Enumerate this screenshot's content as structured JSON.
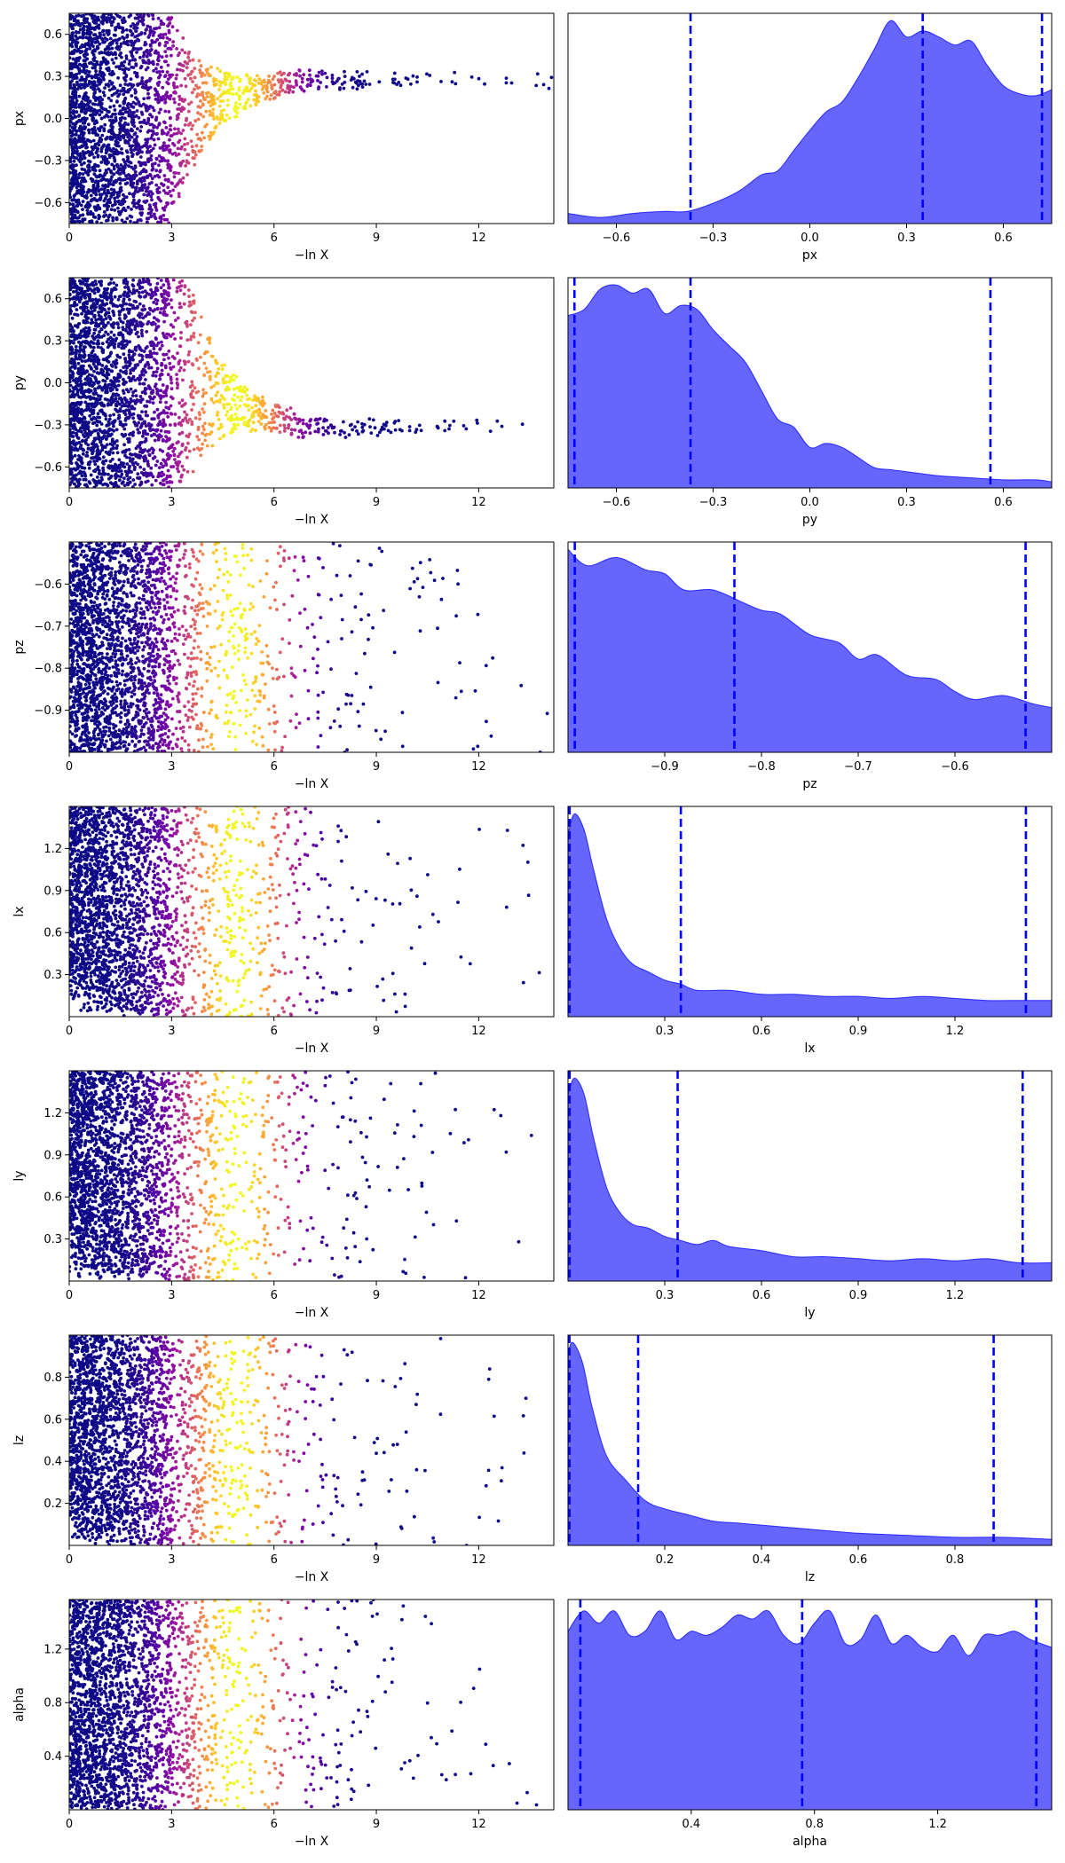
{
  "figure": {
    "colormap": "plasma",
    "kde_fill_color": "#0000ff",
    "kde_fill_opacity": 0.6,
    "quantile_line_color": "#0000ff"
  },
  "chart_data": [
    {
      "type": "scatter",
      "param": "px",
      "xlabel": "−ln X",
      "ylabel": "px",
      "xlim": [
        0,
        14.2
      ],
      "ylim": [
        -0.75,
        0.75
      ],
      "xticks": [
        0,
        3,
        6,
        9,
        12
      ],
      "xtick_labels": [
        "0",
        "3",
        "6",
        "9",
        "12"
      ],
      "yticks": [
        -0.6,
        -0.3,
        0.0,
        0.3,
        0.6
      ],
      "ytick_labels": [
        "−0.6",
        "−0.3",
        "0.0",
        "0.3",
        "0.6"
      ],
      "color_by": "-ln X",
      "weight_peak_x": 4.9,
      "contraction": {
        "start": 3.0,
        "end": 14.2,
        "target": 0.27,
        "min_halfwidth": 0.03
      }
    },
    {
      "type": "area",
      "param": "px",
      "xlabel": "px",
      "xlim": [
        -0.75,
        0.75
      ],
      "xticks": [
        -0.6,
        -0.3,
        0.0,
        0.3,
        0.6
      ],
      "xtick_labels": [
        "−0.6",
        "−0.3",
        "0.0",
        "0.3",
        "0.6"
      ],
      "x": [
        -0.75,
        -0.65,
        -0.55,
        -0.45,
        -0.38,
        -0.3,
        -0.22,
        -0.15,
        -0.1,
        -0.05,
        0.0,
        0.05,
        0.1,
        0.15,
        0.2,
        0.25,
        0.3,
        0.35,
        0.4,
        0.45,
        0.5,
        0.55,
        0.6,
        0.65,
        0.7,
        0.75
      ],
      "density": [
        0.05,
        0.03,
        0.05,
        0.06,
        0.06,
        0.1,
        0.16,
        0.24,
        0.26,
        0.36,
        0.46,
        0.55,
        0.6,
        0.72,
        0.86,
        1.0,
        0.92,
        0.95,
        0.92,
        0.88,
        0.9,
        0.78,
        0.68,
        0.64,
        0.63,
        0.66
      ],
      "quantiles": [
        -0.37,
        0.35,
        0.72
      ]
    },
    {
      "type": "scatter",
      "param": "py",
      "xlabel": "−ln X",
      "ylabel": "py",
      "xlim": [
        0,
        14.2
      ],
      "ylim": [
        -0.75,
        0.75
      ],
      "xticks": [
        0,
        3,
        6,
        9,
        12
      ],
      "xtick_labels": [
        "0",
        "3",
        "6",
        "9",
        "12"
      ],
      "yticks": [
        -0.6,
        -0.3,
        0.0,
        0.3,
        0.6
      ],
      "ytick_labels": [
        "−0.6",
        "−0.3",
        "0.0",
        "0.3",
        "0.6"
      ],
      "color_by": "-ln X",
      "weight_peak_x": 4.9,
      "contraction": {
        "start": 3.5,
        "end": 14.2,
        "target": -0.32,
        "min_halfwidth": 0.03
      }
    },
    {
      "type": "area",
      "param": "py",
      "xlabel": "py",
      "xlim": [
        -0.75,
        0.75
      ],
      "xticks": [
        -0.6,
        -0.3,
        0.0,
        0.3,
        0.6
      ],
      "xtick_labels": [
        "−0.6",
        "−0.3",
        "0.0",
        "0.3",
        "0.6"
      ],
      "x": [
        -0.75,
        -0.7,
        -0.65,
        -0.6,
        -0.55,
        -0.5,
        -0.45,
        -0.4,
        -0.35,
        -0.3,
        -0.25,
        -0.2,
        -0.15,
        -0.1,
        -0.05,
        0.0,
        0.05,
        0.1,
        0.15,
        0.2,
        0.25,
        0.3,
        0.4,
        0.5,
        0.6,
        0.7,
        0.75
      ],
      "density": [
        0.85,
        0.88,
        0.98,
        1.0,
        0.96,
        0.98,
        0.86,
        0.9,
        0.88,
        0.78,
        0.7,
        0.62,
        0.48,
        0.34,
        0.3,
        0.2,
        0.22,
        0.2,
        0.15,
        0.1,
        0.09,
        0.08,
        0.06,
        0.05,
        0.04,
        0.04,
        0.03
      ],
      "quantiles": [
        -0.73,
        -0.37,
        0.56
      ]
    },
    {
      "type": "scatter",
      "param": "pz",
      "xlabel": "−ln X",
      "ylabel": "pz",
      "xlim": [
        0,
        14.2
      ],
      "ylim": [
        -1.0,
        -0.5
      ],
      "xticks": [
        0,
        3,
        6,
        9,
        12
      ],
      "xtick_labels": [
        "0",
        "3",
        "6",
        "9",
        "12"
      ],
      "yticks": [
        -0.9,
        -0.8,
        -0.7,
        -0.6
      ],
      "ytick_labels": [
        "−0.9",
        "−0.8",
        "−0.7",
        "−0.6"
      ],
      "color_by": "-ln X",
      "weight_peak_x": 4.9
    },
    {
      "type": "area",
      "param": "pz",
      "xlabel": "pz",
      "xlim": [
        -1.0,
        -0.5
      ],
      "xticks": [
        -0.9,
        -0.8,
        -0.7,
        -0.6
      ],
      "xtick_labels": [
        "−0.9",
        "−0.8",
        "−0.7",
        "−0.6"
      ],
      "x": [
        -1.0,
        -0.98,
        -0.95,
        -0.92,
        -0.9,
        -0.88,
        -0.85,
        -0.82,
        -0.8,
        -0.78,
        -0.75,
        -0.72,
        -0.7,
        -0.68,
        -0.65,
        -0.62,
        -0.6,
        -0.58,
        -0.55,
        -0.52,
        -0.5
      ],
      "density": [
        1.0,
        0.92,
        0.96,
        0.9,
        0.88,
        0.8,
        0.8,
        0.74,
        0.7,
        0.68,
        0.58,
        0.54,
        0.46,
        0.48,
        0.38,
        0.36,
        0.3,
        0.26,
        0.28,
        0.24,
        0.22
      ],
      "quantiles": [
        -0.993,
        -0.828,
        -0.527
      ]
    },
    {
      "type": "scatter",
      "param": "lx",
      "xlabel": "−ln X",
      "ylabel": "lx",
      "xlim": [
        0,
        14.2
      ],
      "ylim": [
        0.0,
        1.5
      ],
      "xticks": [
        0,
        3,
        6,
        9,
        12
      ],
      "xtick_labels": [
        "0",
        "3",
        "6",
        "9",
        "12"
      ],
      "yticks": [
        0.3,
        0.6,
        0.9,
        1.2
      ],
      "ytick_labels": [
        "0.3",
        "0.6",
        "0.9",
        "1.2"
      ],
      "color_by": "-ln X",
      "weight_peak_x": 4.9,
      "low_edge": {
        "until": 3.0,
        "scale": 0.25
      }
    },
    {
      "type": "area",
      "param": "lx",
      "xlabel": "lx",
      "xlim": [
        0.0,
        1.5
      ],
      "xticks": [
        0.3,
        0.6,
        0.9,
        1.2
      ],
      "xtick_labels": [
        "0.3",
        "0.6",
        "0.9",
        "1.2"
      ],
      "x": [
        0.0,
        0.02,
        0.05,
        0.08,
        0.12,
        0.16,
        0.2,
        0.25,
        0.3,
        0.35,
        0.4,
        0.5,
        0.6,
        0.7,
        0.8,
        0.9,
        1.0,
        1.1,
        1.2,
        1.3,
        1.4,
        1.5
      ],
      "density": [
        0.9,
        1.0,
        0.92,
        0.72,
        0.48,
        0.34,
        0.26,
        0.22,
        0.18,
        0.16,
        0.13,
        0.13,
        0.11,
        0.11,
        0.1,
        0.1,
        0.09,
        0.1,
        0.09,
        0.08,
        0.08,
        0.08
      ],
      "quantiles": [
        0.005,
        0.35,
        1.42
      ]
    },
    {
      "type": "scatter",
      "param": "ly",
      "xlabel": "−ln X",
      "ylabel": "ly",
      "xlim": [
        0,
        14.2
      ],
      "ylim": [
        0.0,
        1.5
      ],
      "xticks": [
        0,
        3,
        6,
        9,
        12
      ],
      "xtick_labels": [
        "0",
        "3",
        "6",
        "9",
        "12"
      ],
      "yticks": [
        0.3,
        0.6,
        0.9,
        1.2
      ],
      "ytick_labels": [
        "0.3",
        "0.6",
        "0.9",
        "1.2"
      ],
      "color_by": "-ln X",
      "weight_peak_x": 4.9,
      "low_edge": {
        "until": 3.0,
        "scale": 0.25
      }
    },
    {
      "type": "area",
      "param": "ly",
      "xlabel": "ly",
      "xlim": [
        0.0,
        1.5
      ],
      "xticks": [
        0.3,
        0.6,
        0.9,
        1.2
      ],
      "xtick_labels": [
        "0.3",
        "0.6",
        "0.9",
        "1.2"
      ],
      "x": [
        0.0,
        0.02,
        0.05,
        0.08,
        0.12,
        0.16,
        0.2,
        0.25,
        0.3,
        0.35,
        0.4,
        0.45,
        0.5,
        0.6,
        0.7,
        0.8,
        0.9,
        1.0,
        1.1,
        1.2,
        1.3,
        1.4,
        1.5
      ],
      "density": [
        0.92,
        1.0,
        0.92,
        0.7,
        0.46,
        0.34,
        0.28,
        0.26,
        0.22,
        0.2,
        0.18,
        0.2,
        0.17,
        0.15,
        0.12,
        0.12,
        0.11,
        0.1,
        0.11,
        0.1,
        0.11,
        0.09,
        0.09
      ],
      "quantiles": [
        0.005,
        0.34,
        1.41
      ]
    },
    {
      "type": "scatter",
      "param": "lz",
      "xlabel": "−ln X",
      "ylabel": "lz",
      "xlim": [
        0,
        14.2
      ],
      "ylim": [
        0.0,
        1.0
      ],
      "xticks": [
        0,
        3,
        6,
        9,
        12
      ],
      "xtick_labels": [
        "0",
        "3",
        "6",
        "9",
        "12"
      ],
      "yticks": [
        0.2,
        0.4,
        0.6,
        0.8
      ],
      "ytick_labels": [
        "0.2",
        "0.4",
        "0.6",
        "0.8"
      ],
      "color_by": "-ln X",
      "weight_peak_x": 4.9,
      "low_edge": {
        "until": 3.0,
        "scale": 0.16
      }
    },
    {
      "type": "area",
      "param": "lz",
      "xlabel": "lz",
      "xlim": [
        0.0,
        1.0
      ],
      "xticks": [
        0.2,
        0.4,
        0.6,
        0.8
      ],
      "xtick_labels": [
        "0.2",
        "0.4",
        "0.6",
        "0.8"
      ],
      "x": [
        0.0,
        0.01,
        0.03,
        0.05,
        0.08,
        0.12,
        0.16,
        0.2,
        0.25,
        0.3,
        0.35,
        0.4,
        0.5,
        0.6,
        0.7,
        0.8,
        0.9,
        1.0
      ],
      "density": [
        0.95,
        1.0,
        0.9,
        0.68,
        0.44,
        0.32,
        0.22,
        0.18,
        0.15,
        0.12,
        0.11,
        0.1,
        0.08,
        0.06,
        0.05,
        0.04,
        0.04,
        0.03
      ],
      "quantiles": [
        0.003,
        0.145,
        0.88
      ]
    },
    {
      "type": "scatter",
      "param": "alpha",
      "xlabel": "−ln X",
      "ylabel": "alpha",
      "xlim": [
        0,
        14.2
      ],
      "ylim": [
        0.0,
        1.57
      ],
      "xticks": [
        0,
        3,
        6,
        9,
        12
      ],
      "xtick_labels": [
        "0",
        "3",
        "6",
        "9",
        "12"
      ],
      "yticks": [
        0.4,
        0.8,
        1.2
      ],
      "ytick_labels": [
        "0.4",
        "0.8",
        "1.2"
      ],
      "color_by": "-ln X",
      "weight_peak_x": 4.9
    },
    {
      "type": "area",
      "param": "alpha",
      "xlabel": "alpha",
      "xlim": [
        0.0,
        1.57
      ],
      "xticks": [
        0.4,
        0.8,
        1.2
      ],
      "xtick_labels": [
        "0.4",
        "0.8",
        "1.2"
      ],
      "x": [
        0.0,
        0.05,
        0.1,
        0.15,
        0.2,
        0.25,
        0.3,
        0.35,
        0.4,
        0.45,
        0.5,
        0.55,
        0.6,
        0.65,
        0.7,
        0.75,
        0.8,
        0.85,
        0.9,
        0.95,
        1.0,
        1.05,
        1.1,
        1.15,
        1.2,
        1.25,
        1.3,
        1.35,
        1.4,
        1.45,
        1.5,
        1.57
      ],
      "density": [
        0.88,
        0.98,
        0.92,
        0.98,
        0.86,
        0.88,
        0.98,
        0.84,
        0.88,
        0.86,
        0.9,
        0.96,
        0.94,
        0.98,
        0.86,
        0.82,
        0.92,
        0.98,
        0.82,
        0.84,
        0.96,
        0.82,
        0.86,
        0.8,
        0.78,
        0.86,
        0.76,
        0.86,
        0.86,
        0.88,
        0.84,
        0.8
      ],
      "quantiles": [
        0.04,
        0.76,
        1.52
      ]
    }
  ]
}
